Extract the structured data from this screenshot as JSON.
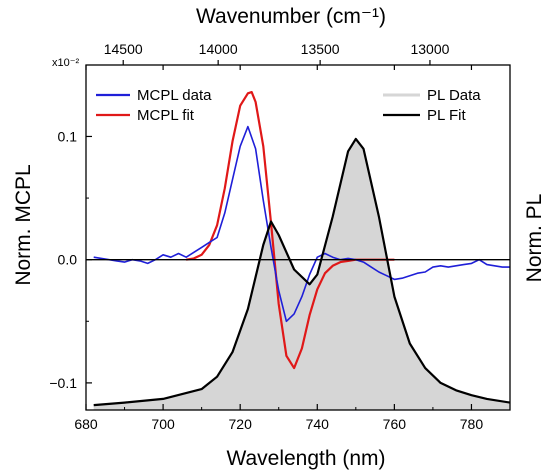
{
  "chart_data": {
    "type": "line",
    "xlabel": "Wavelength (nm)",
    "x2label": "Wavenumber (cm⁻¹)",
    "ylabel": "Norm. MCPL",
    "y2label": "Norm. PL",
    "y_multiplier": "x10⁻²",
    "xlim": [
      680,
      790
    ],
    "ylim": [
      -0.122,
      0.158
    ],
    "x_ticks": [
      "680",
      "700",
      "720",
      "740",
      "760",
      "780"
    ],
    "x2_ticks": [
      "14500",
      "14000",
      "13500",
      "13000"
    ],
    "y_ticks": [
      "−0.1",
      "0.0",
      "0.1"
    ],
    "zero_line": true,
    "grid": false,
    "legend_left": [
      {
        "name": "MCPL data",
        "color": "#1f1fd8"
      },
      {
        "name": "MCPL fit",
        "color": "#e01818"
      }
    ],
    "legend_right": [
      {
        "name": "PL Data",
        "color": "#d6d6d6"
      },
      {
        "name": "PL Fit",
        "color": "#000000"
      }
    ],
    "series": [
      {
        "name": "MCPL data",
        "color": "#1f1fd8",
        "axis": "left",
        "x": [
          682,
          684,
          686,
          688,
          690,
          692,
          694,
          696,
          698,
          700,
          702,
          704,
          706,
          708,
          710,
          712,
          714,
          716,
          718,
          720,
          722,
          724,
          726,
          728,
          730,
          732,
          734,
          736,
          738,
          740,
          742,
          744,
          746,
          748,
          750,
          752,
          754,
          756,
          758,
          760,
          762,
          764,
          766,
          768,
          770,
          772,
          774,
          776,
          778,
          780,
          782,
          784,
          786,
          788,
          790
        ],
        "y": [
          0.002,
          0.001,
          0.0,
          -0.001,
          -0.002,
          0.0,
          -0.001,
          -0.003,
          0.0,
          0.004,
          0.002,
          0.005,
          0.002,
          0.006,
          0.01,
          0.014,
          0.018,
          0.038,
          0.065,
          0.092,
          0.108,
          0.09,
          0.048,
          0.01,
          -0.025,
          -0.05,
          -0.044,
          -0.03,
          -0.012,
          0.002,
          0.005,
          0.002,
          0.0,
          0.001,
          0.0,
          -0.002,
          -0.006,
          -0.01,
          -0.013,
          -0.016,
          -0.015,
          -0.013,
          -0.011,
          -0.01,
          -0.006,
          -0.005,
          -0.006,
          -0.005,
          -0.004,
          -0.003,
          0.0,
          -0.004,
          -0.005,
          -0.006,
          -0.006
        ]
      },
      {
        "name": "MCPL fit",
        "color": "#e01818",
        "axis": "left",
        "x": [
          706,
          708,
          710,
          712,
          714,
          716,
          718,
          720,
          722,
          723,
          724,
          726,
          728,
          730,
          732,
          734,
          736,
          738,
          740,
          742,
          744,
          746,
          748,
          750,
          752,
          754,
          756,
          760
        ],
        "y": [
          0.0,
          0.001,
          0.004,
          0.012,
          0.028,
          0.058,
          0.096,
          0.125,
          0.135,
          0.136,
          0.128,
          0.092,
          0.03,
          -0.036,
          -0.078,
          -0.088,
          -0.072,
          -0.045,
          -0.024,
          -0.011,
          -0.005,
          -0.002,
          -0.001,
          0.0,
          0.0,
          0.0,
          0.0,
          0.0
        ]
      },
      {
        "name": "PL Data",
        "color": "#d6d6d6",
        "axis": "right",
        "fill": true,
        "x": [
          682,
          690,
          700,
          710,
          714,
          718,
          722,
          726,
          728,
          730,
          734,
          738,
          740,
          744,
          748,
          750,
          752,
          756,
          760,
          764,
          768,
          772,
          776,
          780,
          784,
          790
        ],
        "y": [
          -0.118,
          -0.116,
          -0.113,
          -0.105,
          -0.095,
          -0.075,
          -0.04,
          0.012,
          0.031,
          0.02,
          -0.008,
          -0.02,
          -0.012,
          0.035,
          0.088,
          0.098,
          0.09,
          0.035,
          -0.03,
          -0.068,
          -0.088,
          -0.1,
          -0.106,
          -0.11,
          -0.113,
          -0.116
        ]
      },
      {
        "name": "PL Fit",
        "color": "#000000",
        "axis": "right",
        "x": [
          682,
          690,
          700,
          710,
          714,
          718,
          722,
          726,
          728,
          730,
          734,
          738,
          740,
          744,
          748,
          750,
          752,
          756,
          760,
          764,
          768,
          772,
          776,
          780,
          784,
          790
        ],
        "y": [
          -0.118,
          -0.116,
          -0.113,
          -0.105,
          -0.095,
          -0.075,
          -0.04,
          0.012,
          0.031,
          0.02,
          -0.008,
          -0.02,
          -0.012,
          0.035,
          0.088,
          0.098,
          0.09,
          0.035,
          -0.03,
          -0.068,
          -0.088,
          -0.1,
          -0.106,
          -0.11,
          -0.113,
          -0.116
        ]
      }
    ]
  }
}
